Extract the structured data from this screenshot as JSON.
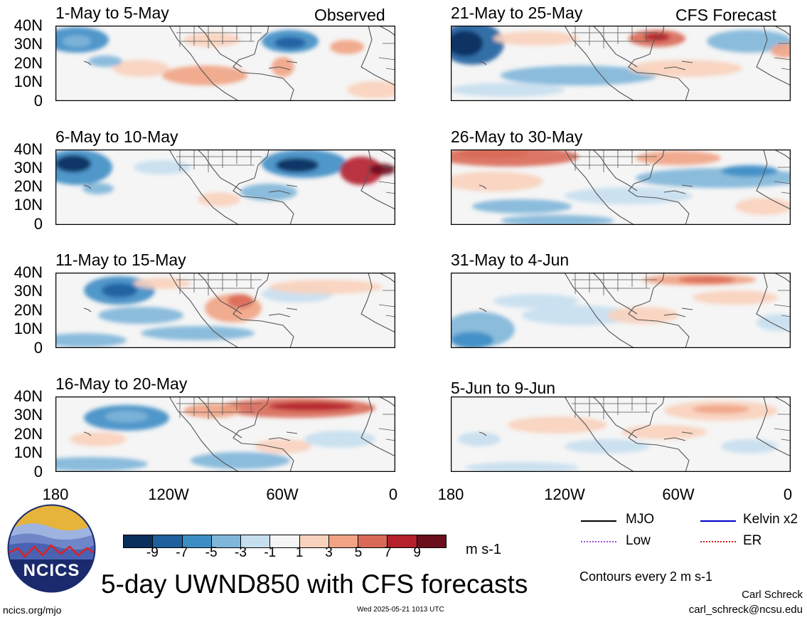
{
  "panels_left": [
    {
      "period": "1-May to 5-May",
      "tag": "Observed"
    },
    {
      "period": "6-May to 10-May",
      "tag": ""
    },
    {
      "period": "11-May to 15-May",
      "tag": ""
    },
    {
      "period": "16-May to 20-May",
      "tag": ""
    }
  ],
  "panels_right": [
    {
      "period": "21-May to 25-May",
      "tag": "CFS Forecast"
    },
    {
      "period": "26-May to 30-May",
      "tag": ""
    },
    {
      "period": "31-May to 4-Jun",
      "tag": ""
    },
    {
      "period": "5-Jun to 9-Jun",
      "tag": ""
    }
  ],
  "lat_labels": [
    "40N",
    "30N",
    "20N",
    "10N",
    "0"
  ],
  "lon_labels": [
    "180",
    "120W",
    "60W",
    "0"
  ],
  "colorbar": {
    "ticks": [
      "-9",
      "-7",
      "-5",
      "-3",
      "-1",
      "1",
      "3",
      "5",
      "7",
      "9"
    ],
    "colors": [
      "#0a2f5c",
      "#1e5f9e",
      "#3d8dc5",
      "#7fb6d9",
      "#c6dfef",
      "#f5f5f5",
      "#f9d2bd",
      "#f1a384",
      "#d96a57",
      "#b4202b",
      "#6c0f1c"
    ],
    "units": "m s-1"
  },
  "legend": {
    "mjo": "MJO",
    "kelvin": "Kelvin x2",
    "low": "Low",
    "er": "ER",
    "mjo_color": "#000000",
    "kelvin_color": "#0000cc",
    "low_color": "#9b4fd6",
    "er_color": "#d81b1b",
    "contours_note": "Contours every 2 m s-1"
  },
  "logo": {
    "text": "NCICS"
  },
  "title": "5-day UWND850 with CFS forecasts",
  "footer": {
    "url": "ncics.org/mjo",
    "timestamp": "Wed 2025-05-21 1013 UTC",
    "author": "Carl Schreck",
    "email": "carl_schreck@ncsu.edu"
  }
}
